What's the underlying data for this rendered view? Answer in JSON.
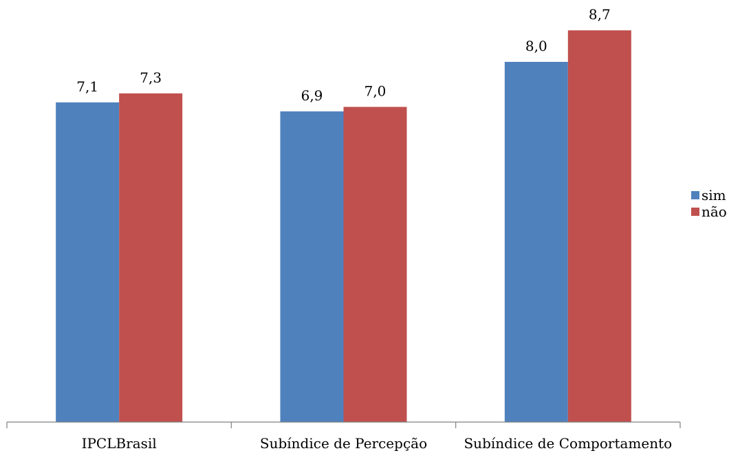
{
  "chart_data": {
    "type": "bar",
    "title": "",
    "xlabel": "",
    "ylabel": "",
    "categories": [
      "IPCLBrasil",
      "Subíndice de Percepção",
      "Subíndice de Comportamento"
    ],
    "series": [
      {
        "name": "sim",
        "color": "#4F81BD",
        "values": [
          7.1,
          6.9,
          8.0
        ],
        "labels": [
          "7,1",
          "6,9",
          "8,0"
        ]
      },
      {
        "name": "não",
        "color": "#C0504D",
        "values": [
          7.3,
          7.0,
          8.7
        ],
        "labels": [
          "7,3",
          "7,0",
          "8,7"
        ]
      }
    ],
    "ylim": [
      0,
      10
    ],
    "grid": false,
    "legend": "right"
  }
}
